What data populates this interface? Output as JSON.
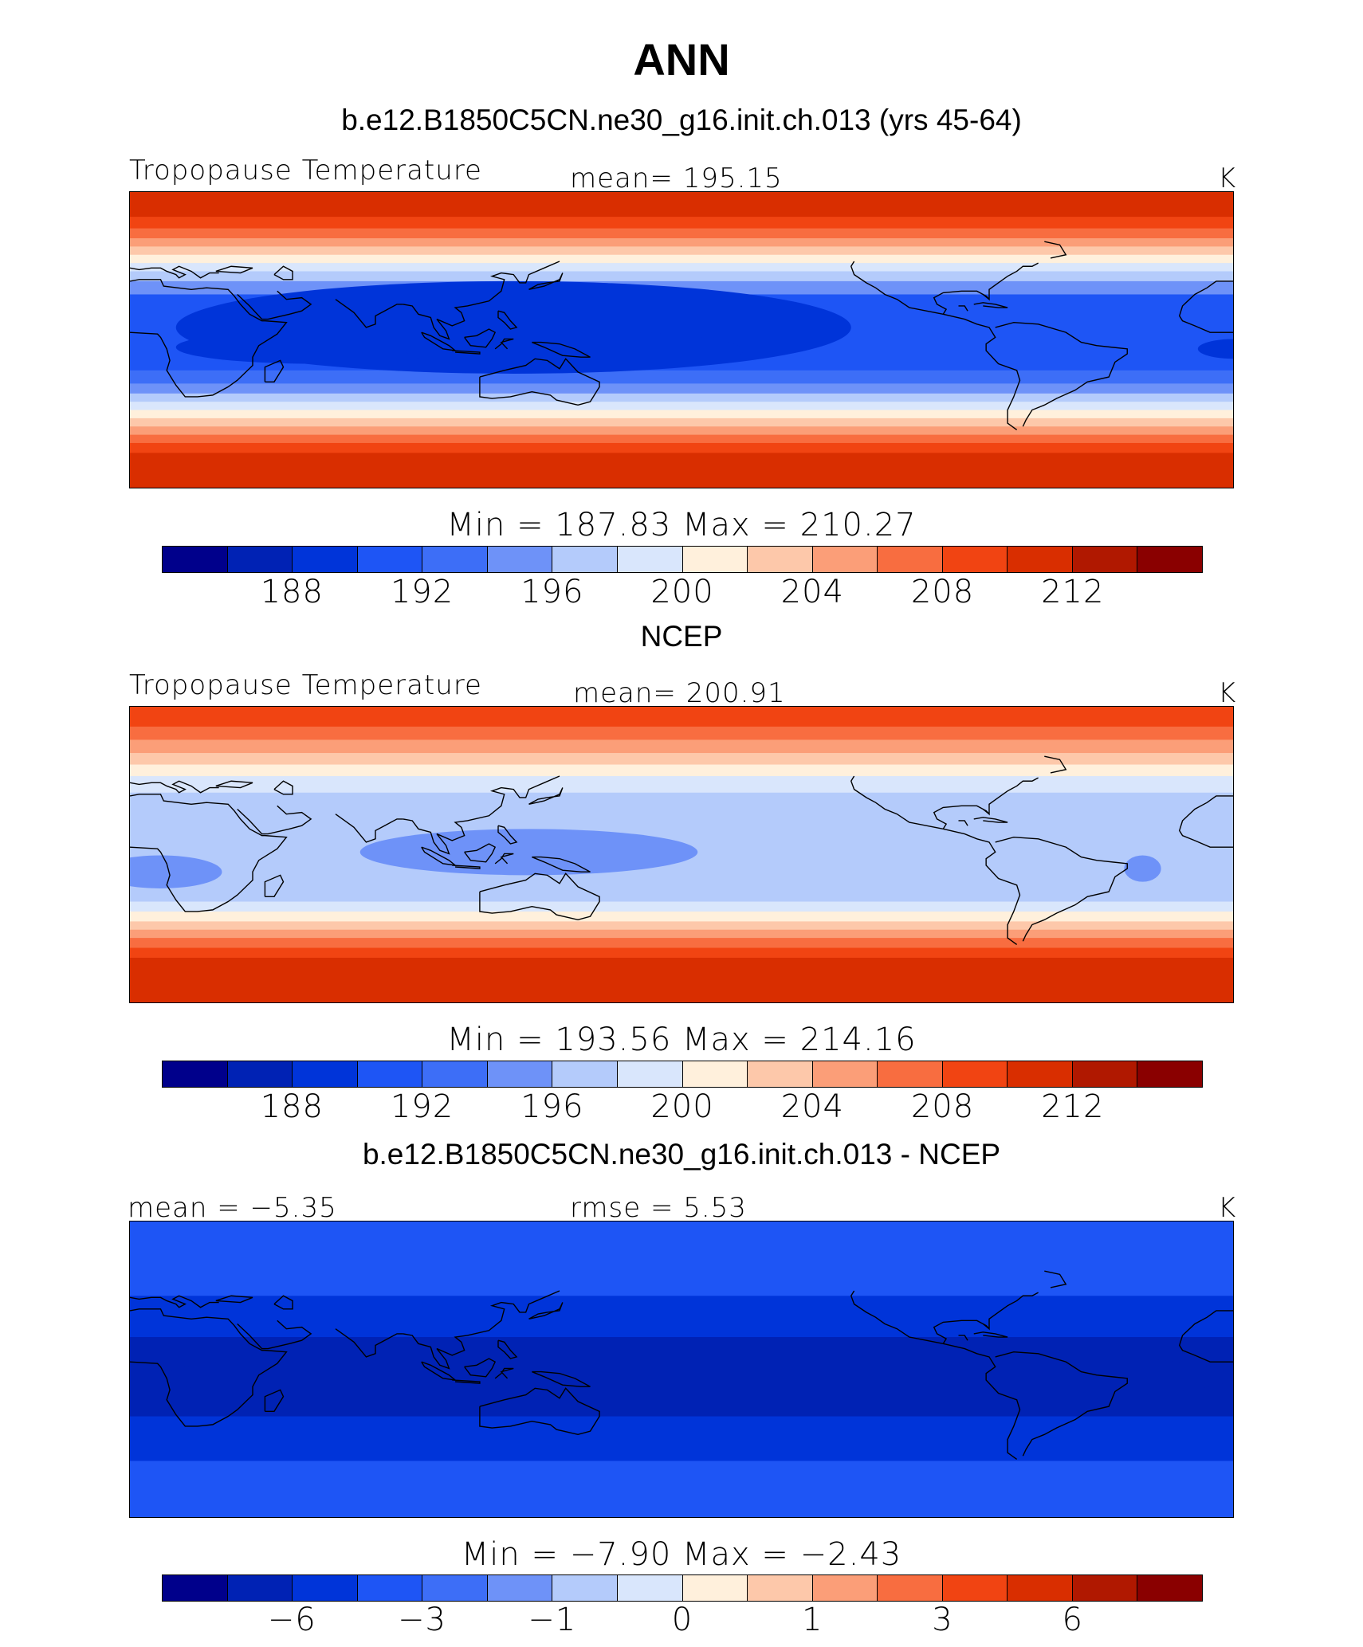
{
  "title": "ANN",
  "colors": [
    "#00008b",
    "#0022b4",
    "#0034d9",
    "#1e55f5",
    "#3d6ef7",
    "#6e92f8",
    "#b4cbfb",
    "#d9e6fc",
    "#fff0dc",
    "#fdc8aa",
    "#fb9e78",
    "#f86d40",
    "#f14412",
    "#d92e00",
    "#b01800",
    "#8a0000"
  ],
  "panels": [
    {
      "id": "model",
      "heading": "b.e12.B1850C5CN.ne30_g16.init.ch.013 (yrs 45-64)",
      "left_label": "Tropopause Temperature",
      "center_label": "mean= 195.15",
      "units": "K",
      "minmax": "Min = 187.83 Max = 210.27",
      "colorbar_ticks": [
        "188",
        "192",
        "196",
        "200",
        "204",
        "208",
        "212"
      ],
      "bands": [
        {
          "from": 90,
          "to": 75,
          "level": 13
        },
        {
          "from": 75,
          "to": 68,
          "level": 12
        },
        {
          "from": 68,
          "to": 62,
          "level": 11
        },
        {
          "from": 62,
          "to": 57,
          "level": 10
        },
        {
          "from": 57,
          "to": 52,
          "level": 9
        },
        {
          "from": 52,
          "to": 47,
          "level": 8
        },
        {
          "from": 47,
          "to": 42,
          "level": 7
        },
        {
          "from": 42,
          "to": 36,
          "level": 6
        },
        {
          "from": 36,
          "to": 28,
          "level": 5
        },
        {
          "from": 28,
          "to": -18,
          "level": 3
        },
        {
          "from": -18,
          "to": -26,
          "level": 4
        },
        {
          "from": -26,
          "to": -32,
          "level": 5
        },
        {
          "from": -32,
          "to": -37,
          "level": 6
        },
        {
          "from": -37,
          "to": -42,
          "level": 7
        },
        {
          "from": -42,
          "to": -47,
          "level": 8
        },
        {
          "from": -47,
          "to": -52,
          "level": 9
        },
        {
          "from": -52,
          "to": -57,
          "level": 10
        },
        {
          "from": -57,
          "to": -62,
          "level": 11
        },
        {
          "from": -62,
          "to": -68,
          "level": 12
        },
        {
          "from": -68,
          "to": -90,
          "level": 13
        }
      ]
    },
    {
      "id": "obs",
      "heading": "NCEP",
      "left_label": "Tropopause Temperature",
      "center_label": "mean= 200.91",
      "units": "K",
      "minmax": "Min = 193.56 Max = 214.16",
      "colorbar_ticks": [
        "188",
        "192",
        "196",
        "200",
        "204",
        "208",
        "212"
      ],
      "bands": [
        {
          "from": 90,
          "to": 78,
          "level": 12
        },
        {
          "from": 78,
          "to": 70,
          "level": 11
        },
        {
          "from": 70,
          "to": 62,
          "level": 10
        },
        {
          "from": 62,
          "to": 55,
          "level": 9
        },
        {
          "from": 55,
          "to": 48,
          "level": 8
        },
        {
          "from": 48,
          "to": 38,
          "level": 7
        },
        {
          "from": 38,
          "to": -28,
          "level": 6
        },
        {
          "from": -28,
          "to": -34,
          "level": 7
        },
        {
          "from": -34,
          "to": -40,
          "level": 8
        },
        {
          "from": -40,
          "to": -45,
          "level": 9
        },
        {
          "from": -45,
          "to": -50,
          "level": 10
        },
        {
          "from": -50,
          "to": -56,
          "level": 11
        },
        {
          "from": -56,
          "to": -62,
          "level": 12
        },
        {
          "from": -62,
          "to": -90,
          "level": 13
        }
      ]
    },
    {
      "id": "diff",
      "heading": "b.e12.B1850C5CN.ne30_g16.init.ch.013 - NCEP",
      "left_label": "mean = −5.35",
      "center_label": "rmse = 5.53",
      "units": "K",
      "minmax": "Min = −7.90 Max = −2.43",
      "colorbar_ticks": [
        "−6",
        "−3",
        "−1",
        "0",
        "1",
        "3",
        "6"
      ],
      "bands": [
        {
          "from": 90,
          "to": 45,
          "level": 3
        },
        {
          "from": 45,
          "to": 20,
          "level": 2
        },
        {
          "from": 20,
          "to": -28,
          "level": 1
        },
        {
          "from": -28,
          "to": -55,
          "level": 2
        },
        {
          "from": -55,
          "to": -90,
          "level": 3
        }
      ]
    }
  ]
}
